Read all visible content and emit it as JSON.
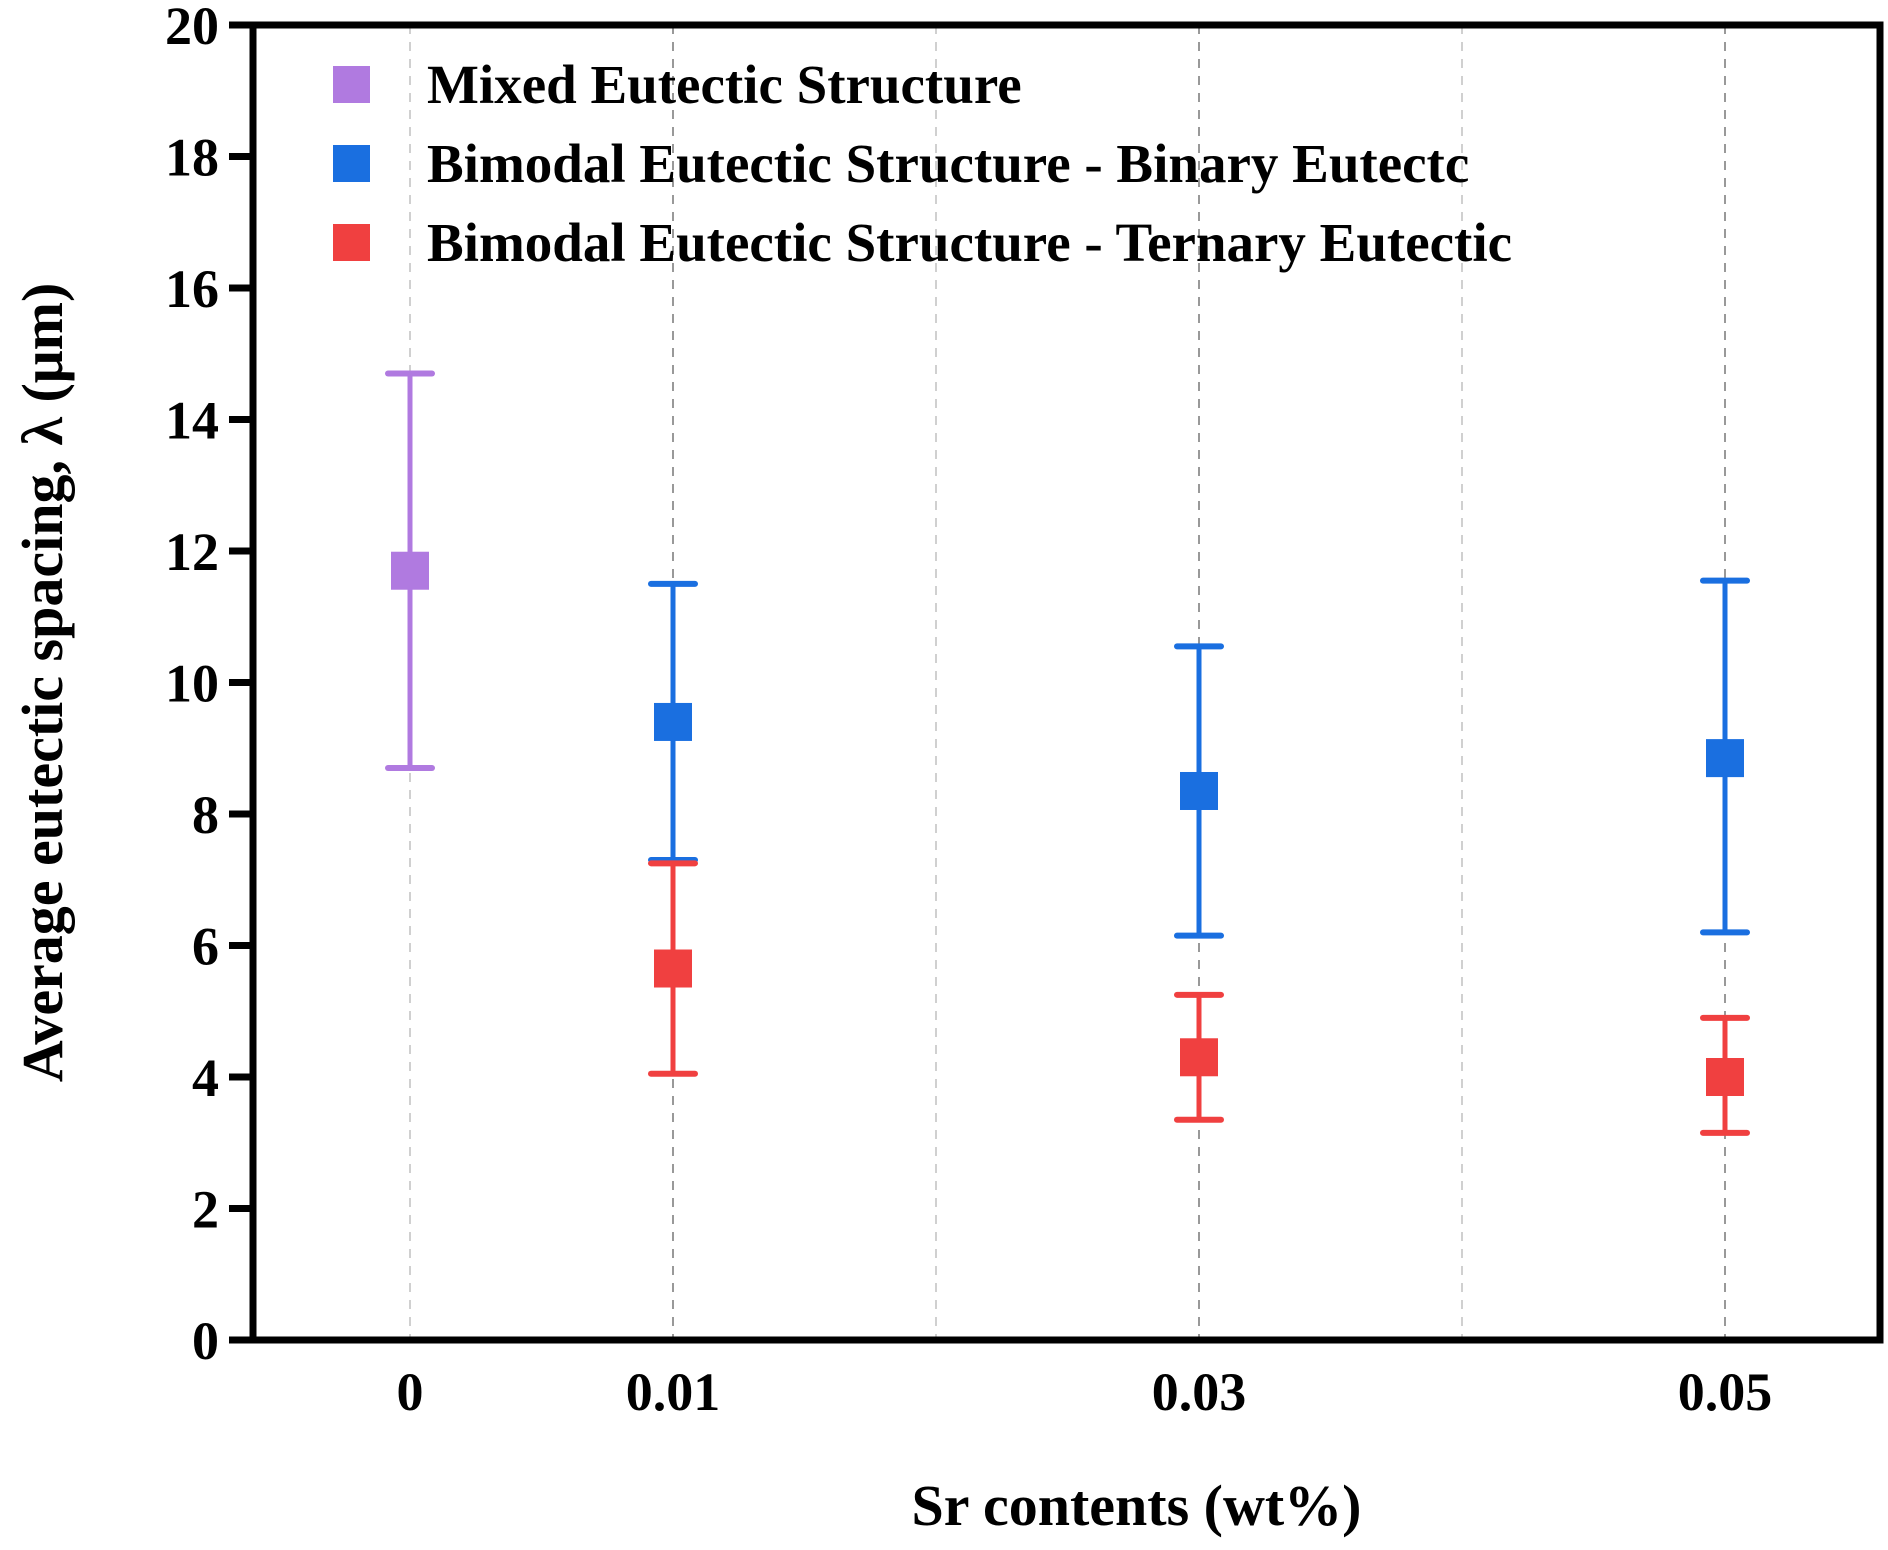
{
  "chart_data": {
    "type": "scatter",
    "title": "",
    "xlabel": "Sr contents (wt%)",
    "ylabel": "Average eutectic spacing, λ (μm)",
    "ylim": [
      0,
      20
    ],
    "yticks": [
      0,
      2,
      4,
      6,
      8,
      10,
      12,
      14,
      16,
      18,
      20
    ],
    "x_positions": [
      "0",
      "0.01",
      "0.02",
      "0.03",
      "0.04",
      "0.05"
    ],
    "xtick_labels": [
      "0",
      "0.01",
      "",
      "0.03",
      "",
      "0.05"
    ],
    "grid": "vertical dashed",
    "legend_position": "top-left",
    "series": [
      {
        "name": "Mixed Eutectic Structure",
        "color": "#b07ae0",
        "marker": "square",
        "points": [
          {
            "x": "0",
            "y": 11.7,
            "err_low": 8.7,
            "err_high": 14.7
          }
        ]
      },
      {
        "name": "Bimodal Eutectic Structure - Binary Eutectc",
        "color": "#1a6fe0",
        "marker": "square",
        "points": [
          {
            "x": "0.01",
            "y": 9.4,
            "err_low": 7.3,
            "err_high": 11.5
          },
          {
            "x": "0.03",
            "y": 8.35,
            "err_low": 6.15,
            "err_high": 10.55
          },
          {
            "x": "0.05",
            "y": 8.85,
            "err_low": 6.2,
            "err_high": 11.55
          }
        ]
      },
      {
        "name": "Bimodal Eutectic Structure - Ternary Eutectic",
        "color": "#f04040",
        "marker": "square",
        "points": [
          {
            "x": "0.01",
            "y": 5.65,
            "err_low": 4.05,
            "err_high": 7.25
          },
          {
            "x": "0.03",
            "y": 4.3,
            "err_low": 3.35,
            "err_high": 5.25
          },
          {
            "x": "0.05",
            "y": 4.0,
            "err_low": 3.15,
            "err_high": 4.9
          }
        ]
      }
    ]
  }
}
